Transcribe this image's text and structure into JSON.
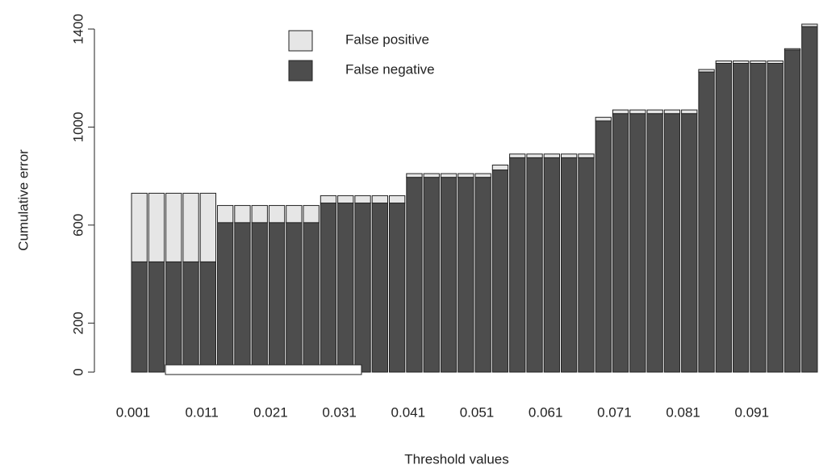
{
  "chart_data": {
    "type": "stacked-bar",
    "x_label": "Threshold values",
    "y_label": "Cumulative error",
    "categories": [
      "0.001",
      null,
      null,
      null,
      "0.011",
      null,
      null,
      null,
      "0.021",
      null,
      null,
      null,
      "0.031",
      null,
      null,
      null,
      "0.041",
      null,
      null,
      null,
      "0.051",
      null,
      null,
      null,
      "0.061",
      null,
      null,
      null,
      "0.071",
      null,
      null,
      null,
      "0.081",
      null,
      null,
      null,
      "0.091",
      null,
      null,
      null
    ],
    "series": [
      {
        "name": "False positive",
        "color": "#e6e6e6",
        "values": [
          280,
          280,
          280,
          280,
          280,
          70,
          70,
          70,
          70,
          70,
          70,
          30,
          30,
          30,
          30,
          30,
          15,
          15,
          15,
          15,
          15,
          20,
          15,
          15,
          15,
          15,
          15,
          15,
          15,
          15,
          15,
          15,
          15,
          10,
          10,
          10,
          10,
          10,
          5,
          10
        ]
      },
      {
        "name": "False negative",
        "color": "#4d4d4d",
        "values": [
          450,
          450,
          450,
          450,
          450,
          610,
          610,
          610,
          610,
          610,
          610,
          690,
          690,
          690,
          690,
          690,
          795,
          795,
          795,
          795,
          795,
          825,
          875,
          875,
          875,
          875,
          875,
          1025,
          1055,
          1055,
          1055,
          1055,
          1055,
          1225,
          1260,
          1260,
          1260,
          1260,
          1315,
          1410
        ]
      }
    ],
    "ylim": [
      0,
      1400
    ],
    "yticks": [
      0,
      200,
      600,
      1000,
      1400
    ]
  }
}
